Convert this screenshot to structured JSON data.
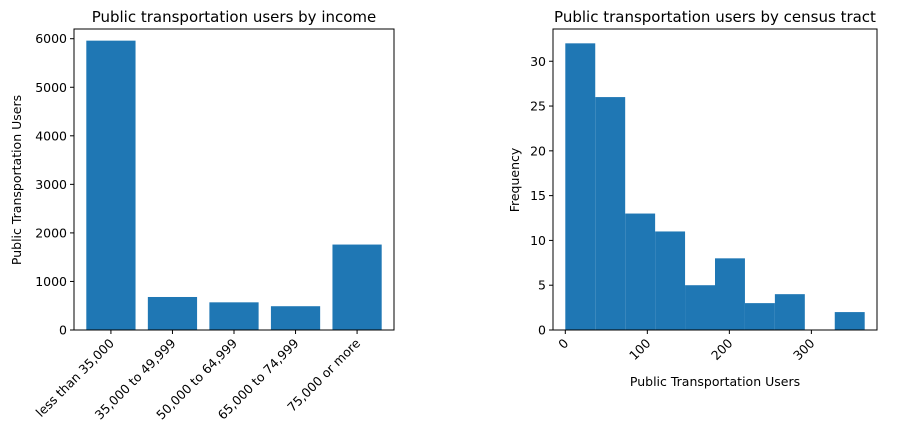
{
  "chart_data": [
    {
      "type": "bar",
      "title": "Public transportation users by income",
      "xlabel": "",
      "ylabel": "Public Transportation Users",
      "categories": [
        "less than 35,000",
        "35,000 to 49,999",
        "50,000 to 64,999",
        "65,000 to 74,999",
        "75,000 or more"
      ],
      "values": [
        5960,
        680,
        570,
        490,
        1760
      ],
      "ylim": [
        0,
        6200
      ],
      "yticks": [
        0,
        1000,
        2000,
        3000,
        4000,
        5000,
        6000
      ],
      "grid": false,
      "bar_color": "#1f77b4"
    },
    {
      "type": "bar",
      "title": "Public transportation users by census tract",
      "xlabel": "Public Transportation Users",
      "ylabel": "Frequency",
      "bins": [
        {
          "start": 0,
          "end": 36.5,
          "count": 32
        },
        {
          "start": 36.5,
          "end": 73,
          "count": 26
        },
        {
          "start": 73,
          "end": 109.5,
          "count": 13
        },
        {
          "start": 109.5,
          "end": 146,
          "count": 11
        },
        {
          "start": 146,
          "end": 182.5,
          "count": 5
        },
        {
          "start": 182.5,
          "end": 219,
          "count": 8
        },
        {
          "start": 219,
          "end": 255.5,
          "count": 3
        },
        {
          "start": 255.5,
          "end": 292,
          "count": 4
        },
        {
          "start": 292,
          "end": 328.5,
          "count": 0
        },
        {
          "start": 328.5,
          "end": 365,
          "count": 2
        }
      ],
      "xlim": [
        -15,
        380
      ],
      "ylim": [
        0,
        33.6
      ],
      "xticks": [
        0,
        100,
        200,
        300
      ],
      "yticks": [
        0,
        5,
        10,
        15,
        20,
        25,
        30
      ],
      "grid": false,
      "bar_color": "#1f77b4"
    }
  ]
}
